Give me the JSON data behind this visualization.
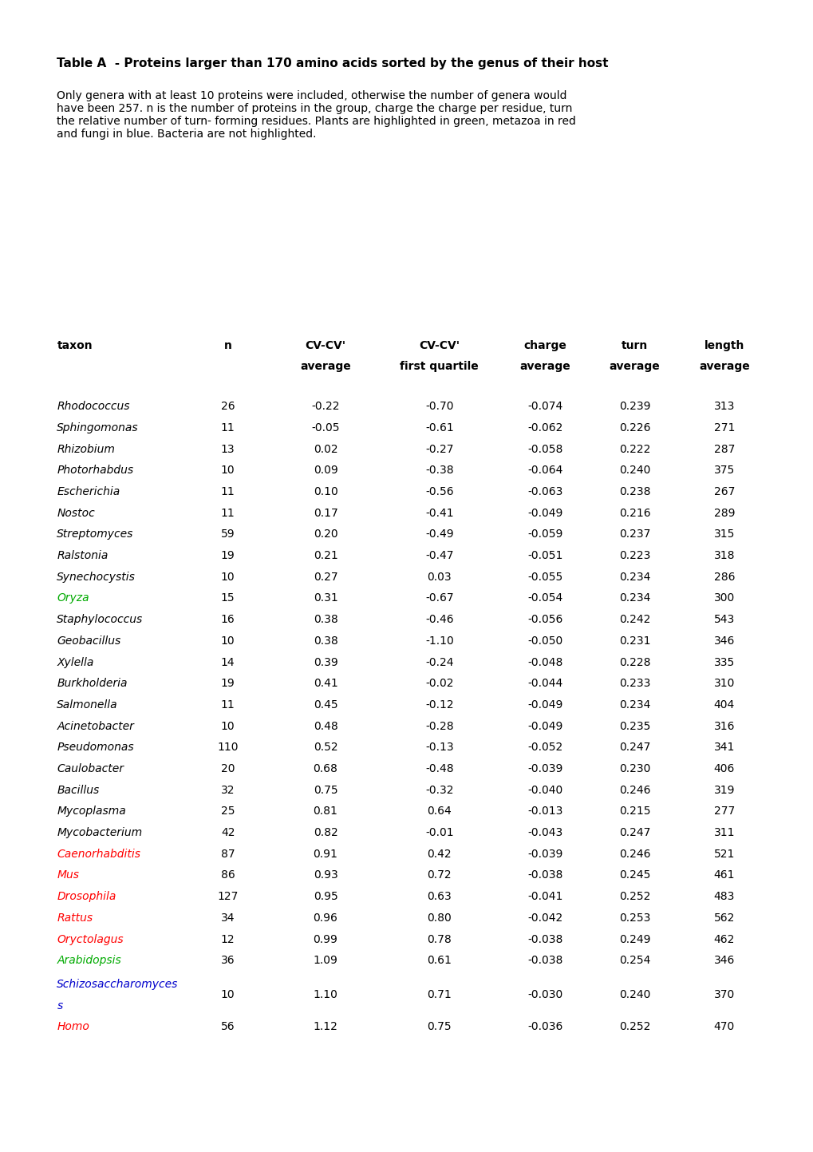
{
  "title": "Table A  - Proteins larger than 170 amino acids sorted by the genus of their host",
  "subtitle": "Only genera with at least 10 proteins were included, otherwise the number of genera would\nhave been 257. n is the number of proteins in the group, charge the charge per residue, turn\nthe relative number of turn- forming residues. Plants are highlighted in green, metazoa in red\nand fungi in blue. Bacteria are not highlighted.",
  "col_headers": [
    "taxon",
    "n",
    "CV-CV'\naverage",
    "CV-CV'\nfirst quartile",
    "charge\naverage",
    "turn\naverage",
    "length\naverage"
  ],
  "rows": [
    [
      "Rhodococcus",
      "26",
      "-0.22",
      "-0.70",
      "-0.074",
      "0.239",
      "313"
    ],
    [
      "Sphingomonas",
      "11",
      "-0.05",
      "-0.61",
      "-0.062",
      "0.226",
      "271"
    ],
    [
      "Rhizobium",
      "13",
      "0.02",
      "-0.27",
      "-0.058",
      "0.222",
      "287"
    ],
    [
      "Photorhabdus",
      "10",
      "0.09",
      "-0.38",
      "-0.064",
      "0.240",
      "375"
    ],
    [
      "Escherichia",
      "11",
      "0.10",
      "-0.56",
      "-0.063",
      "0.238",
      "267"
    ],
    [
      "Nostoc",
      "11",
      "0.17",
      "-0.41",
      "-0.049",
      "0.216",
      "289"
    ],
    [
      "Streptomyces",
      "59",
      "0.20",
      "-0.49",
      "-0.059",
      "0.237",
      "315"
    ],
    [
      "Ralstonia",
      "19",
      "0.21",
      "-0.47",
      "-0.051",
      "0.223",
      "318"
    ],
    [
      "Synechocystis",
      "10",
      "0.27",
      "0.03",
      "-0.055",
      "0.234",
      "286"
    ],
    [
      "Oryza",
      "15",
      "0.31",
      "-0.67",
      "-0.054",
      "0.234",
      "300"
    ],
    [
      "Staphylococcus",
      "16",
      "0.38",
      "-0.46",
      "-0.056",
      "0.242",
      "543"
    ],
    [
      "Geobacillus",
      "10",
      "0.38",
      "-1.10",
      "-0.050",
      "0.231",
      "346"
    ],
    [
      "Xylella",
      "14",
      "0.39",
      "-0.24",
      "-0.048",
      "0.228",
      "335"
    ],
    [
      "Burkholderia",
      "19",
      "0.41",
      "-0.02",
      "-0.044",
      "0.233",
      "310"
    ],
    [
      "Salmonella",
      "11",
      "0.45",
      "-0.12",
      "-0.049",
      "0.234",
      "404"
    ],
    [
      "Acinetobacter",
      "10",
      "0.48",
      "-0.28",
      "-0.049",
      "0.235",
      "316"
    ],
    [
      "Pseudomonas",
      "110",
      "0.52",
      "-0.13",
      "-0.052",
      "0.247",
      "341"
    ],
    [
      "Caulobacter",
      "20",
      "0.68",
      "-0.48",
      "-0.039",
      "0.230",
      "406"
    ],
    [
      "Bacillus",
      "32",
      "0.75",
      "-0.32",
      "-0.040",
      "0.246",
      "319"
    ],
    [
      "Mycoplasma",
      "25",
      "0.81",
      "0.64",
      "-0.013",
      "0.215",
      "277"
    ],
    [
      "Mycobacterium",
      "42",
      "0.82",
      "-0.01",
      "-0.043",
      "0.247",
      "311"
    ],
    [
      "Caenorhabditis",
      "87",
      "0.91",
      "0.42",
      "-0.039",
      "0.246",
      "521"
    ],
    [
      "Mus",
      "86",
      "0.93",
      "0.72",
      "-0.038",
      "0.245",
      "461"
    ],
    [
      "Drosophila",
      "127",
      "0.95",
      "0.63",
      "-0.041",
      "0.252",
      "483"
    ],
    [
      "Rattus",
      "34",
      "0.96",
      "0.80",
      "-0.042",
      "0.253",
      "562"
    ],
    [
      "Oryctolagus",
      "12",
      "0.99",
      "0.78",
      "-0.038",
      "0.249",
      "462"
    ],
    [
      "Arabidopsis",
      "36",
      "1.09",
      "0.61",
      "-0.038",
      "0.254",
      "346"
    ],
    [
      "Schizosaccharomyces\ns",
      "10",
      "1.10",
      "0.71",
      "-0.030",
      "0.240",
      "370"
    ],
    [
      "Homo",
      "56",
      "1.12",
      "0.75",
      "-0.036",
      "0.252",
      "470"
    ]
  ],
  "row_colors": [
    "black",
    "black",
    "black",
    "black",
    "black",
    "black",
    "black",
    "black",
    "black",
    "#00aa00",
    "black",
    "black",
    "black",
    "black",
    "black",
    "black",
    "black",
    "black",
    "black",
    "black",
    "black",
    "#ff0000",
    "#ff0000",
    "#ff0000",
    "#ff0000",
    "#ff0000",
    "#00aa00",
    "#0000cc",
    "#ff0000"
  ],
  "background_color": "#ffffff"
}
